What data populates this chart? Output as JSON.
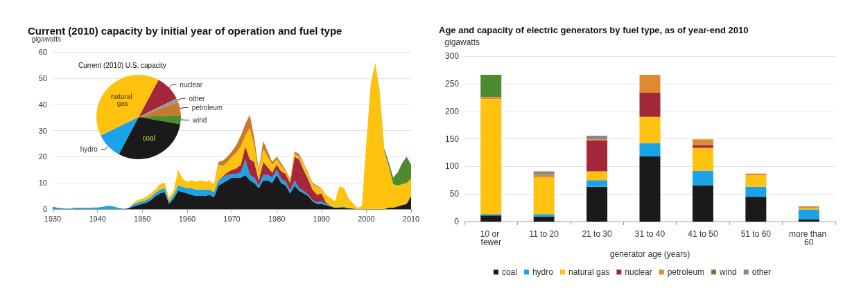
{
  "chart_data": [
    {
      "type": "area",
      "title": "Current (2010) capacity by initial year of operation and fuel type",
      "ylabel": "gigawatts",
      "stacked": true,
      "grid": "y",
      "xlim": [
        1930,
        2010
      ],
      "xticks": [
        1930,
        1940,
        1950,
        1960,
        1970,
        1980,
        1990,
        2000,
        2010
      ],
      "ylim": [
        0,
        60
      ],
      "yticks": [
        0,
        10,
        20,
        30,
        40,
        50,
        60
      ],
      "x": [
        1930,
        1931,
        1932,
        1933,
        1934,
        1935,
        1936,
        1937,
        1938,
        1939,
        1940,
        1941,
        1942,
        1943,
        1944,
        1945,
        1946,
        1947,
        1948,
        1949,
        1950,
        1951,
        1952,
        1953,
        1954,
        1955,
        1956,
        1957,
        1958,
        1959,
        1960,
        1961,
        1962,
        1963,
        1964,
        1965,
        1966,
        1967,
        1968,
        1969,
        1970,
        1971,
        1972,
        1973,
        1974,
        1975,
        1976,
        1977,
        1978,
        1979,
        1980,
        1981,
        1982,
        1983,
        1984,
        1985,
        1986,
        1987,
        1988,
        1989,
        1990,
        1991,
        1992,
        1993,
        1994,
        1995,
        1996,
        1997,
        1998,
        1999,
        2000,
        2001,
        2002,
        2003,
        2004,
        2005,
        2006,
        2007,
        2008,
        2009,
        2010
      ],
      "series": [
        {
          "color": "#1a1a1a",
          "values": [
            0,
            0,
            0,
            0,
            0,
            0,
            0,
            0,
            0,
            0,
            0,
            0,
            0,
            0,
            0,
            0,
            0,
            0.3,
            1,
            1.5,
            2,
            2.5,
            3.5,
            5,
            6,
            6.5,
            2,
            4,
            7,
            6.5,
            6,
            5.5,
            5,
            5,
            5,
            5.5,
            4.5,
            9,
            10,
            11,
            12,
            12,
            12,
            13,
            11,
            10,
            8,
            11,
            11,
            10,
            13,
            10,
            9,
            6,
            9,
            7,
            6,
            5,
            3,
            2,
            2,
            1.5,
            1,
            0.5,
            0.5,
            0.5,
            0.3,
            0.2,
            0,
            0,
            0,
            0,
            0,
            0,
            0,
            0.5,
            0.5,
            1,
            1.5,
            2,
            5
          ]
        },
        {
          "color": "#1aa3e8",
          "values": [
            1,
            0.5,
            0.3,
            0.2,
            0.2,
            0.5,
            0.5,
            0.5,
            0.4,
            0.6,
            0.6,
            0.8,
            1.2,
            1.2,
            0.8,
            0.3,
            0.1,
            0.2,
            0.8,
            1,
            1,
            1,
            1.2,
            1.2,
            1.5,
            1.5,
            1,
            1.5,
            2,
            2,
            2,
            2.5,
            2.5,
            2.5,
            2.5,
            2,
            2,
            2,
            2,
            2,
            1.5,
            1.5,
            2,
            6,
            2,
            2,
            1,
            2,
            2,
            2,
            2,
            1.5,
            1.5,
            1,
            2,
            1,
            1,
            0.5,
            0.5,
            0.5,
            1,
            0.5,
            0.3,
            0,
            0.2,
            0.5,
            0,
            0,
            0,
            0,
            0,
            0,
            0,
            0,
            0,
            0,
            0,
            0,
            0,
            0,
            0
          ]
        },
        {
          "color": "#a3293a",
          "values": [
            0,
            0,
            0,
            0,
            0,
            0,
            0,
            0,
            0,
            0,
            0,
            0,
            0,
            0,
            0,
            0,
            0,
            0,
            0,
            0,
            0,
            0,
            0,
            0,
            0,
            0,
            0,
            0,
            0,
            0,
            0,
            0,
            0,
            0,
            0,
            0,
            0,
            0,
            0.5,
            1,
            1.5,
            2,
            3,
            5,
            6,
            6,
            2,
            5,
            3,
            2,
            2,
            3,
            3,
            3,
            9,
            11,
            8,
            6,
            4,
            3,
            3,
            0.5,
            0,
            0,
            0,
            0,
            0,
            0,
            0,
            0,
            0,
            0,
            0,
            0,
            0,
            0,
            0,
            0,
            0,
            0,
            0
          ]
        },
        {
          "color": "#ffc20e",
          "values": [
            0,
            0,
            0,
            0,
            0,
            0,
            0,
            0,
            0,
            0,
            0,
            0,
            0,
            0,
            0,
            0,
            0,
            0,
            0.5,
            1,
            1,
            1.3,
            1.3,
            1.5,
            2,
            2,
            1.5,
            1.5,
            6,
            3,
            2.5,
            3,
            3,
            3.5,
            3,
            3.5,
            3,
            6,
            4,
            4,
            5,
            6,
            7,
            4,
            12,
            6,
            3,
            5,
            4,
            3,
            2,
            2,
            1,
            1,
            1,
            1,
            2,
            2,
            2,
            3,
            2,
            3,
            3,
            2.5,
            8,
            7,
            4,
            2,
            0.5,
            1,
            25,
            48,
            56,
            45,
            22,
            16,
            9,
            8,
            8,
            8,
            6.5
          ]
        },
        {
          "color": "#c8792a",
          "values": [
            null,
            null,
            null,
            null,
            null,
            null,
            null,
            null,
            null,
            null,
            null,
            null,
            null,
            null,
            null,
            null,
            null,
            null,
            null,
            null,
            null,
            null,
            null,
            null,
            null,
            null,
            null,
            null,
            null,
            null,
            null,
            null,
            null,
            null,
            null,
            null,
            0,
            1,
            2,
            2,
            2,
            3,
            4,
            4.5,
            5,
            3,
            1,
            3,
            2,
            1,
            1,
            1,
            0.5,
            0.5,
            1,
            1,
            0.5,
            0.5,
            0.5,
            0.5,
            0,
            0,
            0,
            0,
            0,
            0,
            0,
            0,
            0,
            0,
            0,
            0,
            0,
            0,
            0,
            0,
            0,
            0,
            0,
            0,
            0
          ]
        },
        {
          "color": "#4e8a2e",
          "values": [
            null,
            null,
            null,
            null,
            null,
            null,
            null,
            null,
            null,
            null,
            null,
            null,
            null,
            null,
            null,
            null,
            null,
            null,
            null,
            null,
            null,
            null,
            null,
            null,
            null,
            null,
            null,
            null,
            null,
            null,
            null,
            null,
            null,
            null,
            null,
            null,
            null,
            null,
            null,
            null,
            null,
            null,
            null,
            null,
            null,
            null,
            null,
            null,
            null,
            null,
            null,
            null,
            null,
            null,
            null,
            null,
            null,
            null,
            null,
            null,
            null,
            null,
            null,
            null,
            null,
            null,
            null,
            null,
            null,
            null,
            null,
            null,
            null,
            0,
            1,
            1.5,
            2.5,
            5,
            8,
            10,
            5.5
          ]
        }
      ]
    },
    {
      "type": "pie",
      "title": "Current (2010) U.S. capacity",
      "categories": [
        "nuclear",
        "other",
        "petroleum",
        "wind",
        "coal",
        "hydro",
        "natural gas"
      ],
      "values": [
        10,
        1.5,
        5,
        3.5,
        30,
        10,
        40
      ],
      "colors": [
        "#a3293a",
        "#999999",
        "#c8792a",
        "#4e8a2e",
        "#1a1a1a",
        "#1aa3e8",
        "#ffc20e"
      ]
    },
    {
      "type": "bar",
      "title": "Age and capacity of electric generators by fuel type, as of year-end 2010",
      "ylabel": "gigawatts",
      "xlabel": "generator age (years)",
      "stacked": true,
      "grid": "y",
      "legend": "bottom",
      "ylim": [
        0,
        300
      ],
      "yticks": [
        0,
        50,
        100,
        150,
        200,
        250,
        300
      ],
      "categories": [
        "10 or fewer",
        "11 to 20",
        "21 to 30",
        "31 to 40",
        "41 to 50",
        "51 to 60",
        "more than 60"
      ],
      "series": [
        {
          "name": "coal",
          "color": "#1a1a1a",
          "values": [
            11,
            9,
            63,
            118,
            66,
            45,
            4
          ]
        },
        {
          "name": "hydro",
          "color": "#1aa3e8",
          "values": [
            2.5,
            4.5,
            12,
            24,
            26,
            18,
            18
          ]
        },
        {
          "name": "natural gas",
          "color": "#ffc20e",
          "values": [
            208.5,
            66.5,
            16,
            48,
            41.5,
            21,
            2
          ]
        },
        {
          "name": "nuclear",
          "color": "#a3293a",
          "values": [
            0,
            0,
            56,
            43.5,
            5,
            0,
            0
          ]
        },
        {
          "name": "petroleum",
          "color": "#e08a30",
          "values": [
            3.5,
            4.5,
            2,
            32.5,
            10.5,
            3,
            3.5
          ]
        },
        {
          "name": "wind",
          "color": "#4e8a2e",
          "values": [
            40.5,
            0,
            0,
            0,
            0,
            0,
            0
          ]
        },
        {
          "name": "other",
          "color": "#888888",
          "values": [
            0,
            6.5,
            6.5,
            0,
            0,
            0,
            0
          ]
        }
      ]
    }
  ]
}
